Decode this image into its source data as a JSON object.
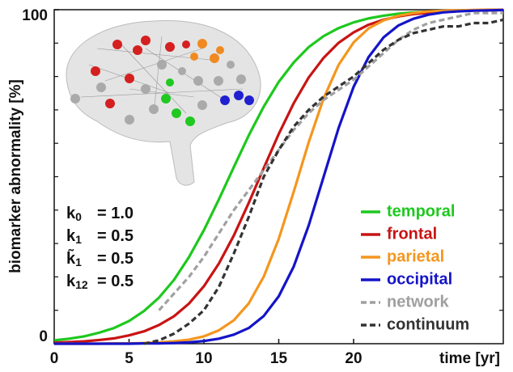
{
  "chart_data": {
    "type": "line",
    "xlabel": "time [yr]",
    "ylabel": "biomarker abnormality [%]",
    "xlim": [
      0,
      30
    ],
    "ylim": [
      0,
      100
    ],
    "xticks": [
      0,
      5,
      10,
      15,
      20
    ],
    "yticks": [
      0,
      100
    ],
    "y_minor_ticks": [
      10,
      20,
      30,
      40,
      50,
      60,
      70,
      80,
      90
    ],
    "legend": "lower right",
    "x": [
      0,
      1,
      2,
      3,
      4,
      5,
      6,
      7,
      8,
      9,
      10,
      11,
      12,
      13,
      14,
      15,
      16,
      17,
      18,
      19,
      20,
      21,
      22,
      23,
      24,
      25,
      26,
      27,
      28,
      29,
      30
    ],
    "series": [
      {
        "name": "temporal",
        "color": "#1ec81e",
        "style": "solid",
        "values": [
          1.0,
          1.5,
          2.2,
          3.3,
          4.7,
          6.8,
          9.8,
          13.8,
          19.1,
          25.9,
          34.0,
          43.2,
          52.9,
          62.4,
          71.0,
          78.4,
          84.2,
          88.8,
          92.1,
          94.5,
          96.2,
          97.4,
          98.2,
          98.8,
          99.2,
          99.4,
          99.6,
          99.7,
          99.8,
          99.9,
          99.9
        ]
      },
      {
        "name": "frontal",
        "color": "#c81414",
        "style": "solid",
        "values": [
          0.3,
          0.5,
          0.7,
          1.1,
          1.6,
          2.5,
          3.7,
          5.6,
          8.2,
          12.0,
          17.2,
          24.0,
          32.4,
          42.2,
          52.6,
          62.8,
          72.0,
          79.7,
          85.6,
          90.1,
          93.2,
          95.5,
          97.0,
          98.0,
          98.7,
          99.1,
          99.4,
          99.6,
          99.8,
          99.8,
          99.9
        ]
      },
      {
        "name": "parietal",
        "color": "#f5961e",
        "style": "solid",
        "values": [
          0.0,
          0.0,
          0.0,
          0.0,
          0.1,
          0.1,
          0.2,
          0.4,
          0.7,
          1.2,
          2.2,
          4.0,
          7.0,
          12.1,
          20.1,
          31.4,
          45.5,
          60.3,
          73.5,
          83.5,
          90.2,
          94.4,
          96.8,
          98.2,
          99.0,
          99.5,
          99.7,
          99.8,
          99.9,
          100,
          100
        ]
      },
      {
        "name": "occipital",
        "color": "#1414c8",
        "style": "solid",
        "values": [
          0.0,
          0.0,
          0.0,
          0.0,
          0.0,
          0.0,
          0.1,
          0.1,
          0.2,
          0.4,
          0.8,
          1.5,
          2.7,
          4.7,
          8.3,
          14.2,
          23.1,
          35.4,
          50,
          64.6,
          76.9,
          85.8,
          91.7,
          95.3,
          97.3,
          98.5,
          99.2,
          99.5,
          99.7,
          99.8,
          99.9
        ]
      },
      {
        "name": "network",
        "color": "#a0a0a0",
        "style": "dashed",
        "values": [
          null,
          null,
          null,
          null,
          null,
          null,
          null,
          10,
          15,
          20,
          26,
          33,
          40,
          46,
          52,
          58,
          64,
          69,
          73,
          76,
          79,
          83,
          87,
          91,
          94,
          96,
          97,
          98,
          99,
          99,
          99
        ]
      },
      {
        "name": "continuum",
        "color": "#333333",
        "style": "dashed",
        "values": [
          null,
          null,
          null,
          null,
          null,
          null,
          0,
          1,
          3,
          6,
          10,
          17,
          27,
          38,
          50,
          58,
          65,
          70,
          74,
          77,
          80,
          84,
          88,
          91,
          93,
          94,
          95,
          95,
          96,
          96,
          97
        ]
      }
    ],
    "annotations": [
      {
        "symbol": "k",
        "subscript": "0",
        "text": "= 1.0"
      },
      {
        "symbol": "k",
        "subscript": "1",
        "text": "= 0.5"
      },
      {
        "symbol": "k̃",
        "subscript": "1",
        "text": "= 0.5"
      },
      {
        "symbol": "k",
        "subscript": "12",
        "text": "= 0.5"
      }
    ]
  }
}
